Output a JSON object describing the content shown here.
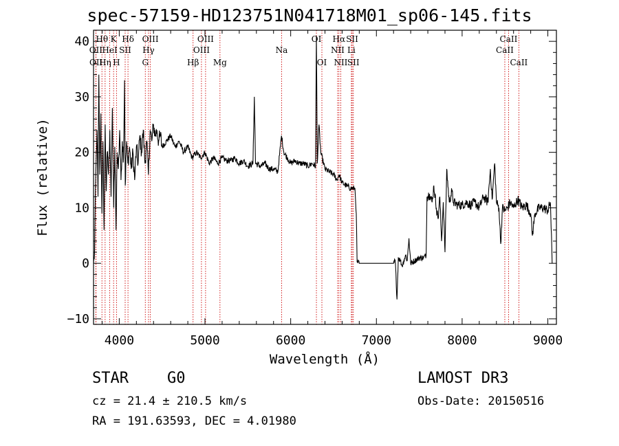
{
  "title": "spec-57159-HD123751N041718M01_sp06-145.fits",
  "info": {
    "object_class": "STAR",
    "subclass": "G0",
    "survey": "LAMOST DR3",
    "cz": "cz = 21.4 ± 210.5 km/s",
    "obs_date": "Obs-Date: 20150516",
    "radec": "RA = 191.63593, DEC =   4.01980"
  },
  "colors": {
    "spectrum": "#000000",
    "line_marker": "#cc0000",
    "axes": "#000000"
  },
  "chart_data": {
    "type": "line",
    "xlabel": "Wavelength (Å)",
    "ylabel": "Flux (relative)",
    "xlim": [
      3700,
      9100
    ],
    "ylim": [
      -11,
      42
    ],
    "xticks": [
      4000,
      5000,
      6000,
      7000,
      8000,
      9000
    ],
    "yticks": [
      -10,
      0,
      10,
      20,
      30,
      40
    ],
    "x_minor_step": 200,
    "y_minor_step": 2,
    "grid": false,
    "spectrum_anchors": [
      [
        3700,
        0
      ],
      [
        3712,
        2
      ],
      [
        3725,
        15
      ],
      [
        3740,
        24
      ],
      [
        3752,
        12
      ],
      [
        3762,
        34
      ],
      [
        3773,
        16
      ],
      [
        3786,
        27
      ],
      [
        3798,
        9
      ],
      [
        3810,
        22
      ],
      [
        3823,
        6
      ],
      [
        3836,
        25
      ],
      [
        3848,
        13
      ],
      [
        3860,
        20
      ],
      [
        3875,
        16
      ],
      [
        3890,
        24
      ],
      [
        3905,
        12
      ],
      [
        3920,
        28
      ],
      [
        3935,
        10
      ],
      [
        3948,
        21
      ],
      [
        3962,
        6
      ],
      [
        3975,
        20
      ],
      [
        3990,
        17
      ],
      [
        4005,
        24
      ],
      [
        4020,
        15
      ],
      [
        4035,
        22
      ],
      [
        4050,
        19
      ],
      [
        4062,
        33
      ],
      [
        4070,
        14
      ],
      [
        4085,
        22
      ],
      [
        4100,
        18
      ],
      [
        4120,
        21
      ],
      [
        4140,
        17
      ],
      [
        4160,
        20
      ],
      [
        4180,
        15
      ],
      [
        4200,
        21
      ],
      [
        4220,
        18
      ],
      [
        4240,
        23
      ],
      [
        4260,
        20
      ],
      [
        4280,
        24
      ],
      [
        4300,
        18
      ],
      [
        4320,
        22
      ],
      [
        4340,
        16
      ],
      [
        4360,
        24
      ],
      [
        4380,
        22
      ],
      [
        4400,
        25
      ],
      [
        4420,
        23
      ],
      [
        4440,
        24
      ],
      [
        4460,
        22
      ],
      [
        4480,
        23
      ],
      [
        4500,
        21
      ],
      [
        4550,
        22
      ],
      [
        4600,
        23
      ],
      [
        4650,
        21
      ],
      [
        4700,
        22
      ],
      [
        4750,
        20
      ],
      [
        4800,
        21
      ],
      [
        4850,
        19
      ],
      [
        4900,
        20
      ],
      [
        4950,
        19
      ],
      [
        5000,
        20
      ],
      [
        5050,
        18
      ],
      [
        5100,
        19
      ],
      [
        5150,
        18
      ],
      [
        5200,
        19
      ],
      [
        5250,
        18.5
      ],
      [
        5300,
        18.5
      ],
      [
        5350,
        19
      ],
      [
        5400,
        18
      ],
      [
        5450,
        18.5
      ],
      [
        5500,
        17.5
      ],
      [
        5560,
        18
      ],
      [
        5576,
        30
      ],
      [
        5590,
        18
      ],
      [
        5650,
        17.5
      ],
      [
        5700,
        18
      ],
      [
        5750,
        17
      ],
      [
        5800,
        17
      ],
      [
        5850,
        16.5
      ],
      [
        5893,
        23
      ],
      [
        5920,
        20
      ],
      [
        5960,
        19
      ],
      [
        6000,
        18
      ],
      [
        6050,
        18.5
      ],
      [
        6100,
        18
      ],
      [
        6150,
        18
      ],
      [
        6200,
        17.5
      ],
      [
        6250,
        18
      ],
      [
        6290,
        17.5
      ],
      [
        6300,
        41
      ],
      [
        6310,
        18
      ],
      [
        6330,
        25
      ],
      [
        6350,
        20
      ],
      [
        6400,
        17
      ],
      [
        6450,
        16.5
      ],
      [
        6500,
        16
      ],
      [
        6540,
        15
      ],
      [
        6563,
        16
      ],
      [
        6600,
        14.5
      ],
      [
        6650,
        14
      ],
      [
        6700,
        13.5
      ],
      [
        6750,
        13.5
      ],
      [
        6755,
        12
      ],
      [
        6765,
        9
      ],
      [
        6775,
        0.2
      ],
      [
        6800,
        0
      ],
      [
        7200,
        0
      ],
      [
        7220,
        0.5
      ],
      [
        7240,
        -6.5
      ],
      [
        7255,
        1
      ],
      [
        7280,
        0.5
      ],
      [
        7300,
        -0.5
      ],
      [
        7320,
        0.5
      ],
      [
        7340,
        1.5
      ],
      [
        7360,
        0.5
      ],
      [
        7380,
        4.5
      ],
      [
        7400,
        0
      ],
      [
        7450,
        0.5
      ],
      [
        7500,
        1
      ],
      [
        7550,
        1
      ],
      [
        7580,
        1.5
      ],
      [
        7590,
        12
      ],
      [
        7620,
        12.5
      ],
      [
        7650,
        11
      ],
      [
        7670,
        14
      ],
      [
        7700,
        10
      ],
      [
        7720,
        8
      ],
      [
        7740,
        12
      ],
      [
        7760,
        4
      ],
      [
        7780,
        11
      ],
      [
        7800,
        2
      ],
      [
        7820,
        17
      ],
      [
        7850,
        11
      ],
      [
        7880,
        13
      ],
      [
        7900,
        11
      ],
      [
        7950,
        10.5
      ],
      [
        8000,
        10.5
      ],
      [
        8050,
        11
      ],
      [
        8100,
        10.5
      ],
      [
        8150,
        11
      ],
      [
        8200,
        10
      ],
      [
        8250,
        12
      ],
      [
        8300,
        11
      ],
      [
        8330,
        17
      ],
      [
        8350,
        11.5
      ],
      [
        8380,
        18
      ],
      [
        8400,
        11
      ],
      [
        8430,
        10
      ],
      [
        8450,
        3.5
      ],
      [
        8470,
        10
      ],
      [
        8500,
        9.5
      ],
      [
        8530,
        10
      ],
      [
        8560,
        11
      ],
      [
        8600,
        10
      ],
      [
        8650,
        11.5
      ],
      [
        8700,
        10
      ],
      [
        8750,
        10.5
      ],
      [
        8800,
        9
      ],
      [
        8820,
        5
      ],
      [
        8850,
        9
      ],
      [
        8900,
        10
      ],
      [
        8950,
        10
      ],
      [
        9000,
        9.5
      ],
      [
        9030,
        11
      ],
      [
        9050,
        0
      ]
    ],
    "spectral_lines": [
      {
        "label": "Hθ",
        "wavelength": 3798,
        "row": 0
      },
      {
        "label": "OII",
        "wavelength": 3727,
        "row": 1
      },
      {
        "label": "OII",
        "wavelength": 3729,
        "row": 2
      },
      {
        "label": "Hη",
        "wavelength": 3835,
        "row": 2
      },
      {
        "label": "K",
        "wavelength": 3934,
        "row": 0
      },
      {
        "label": "HeI",
        "wavelength": 3889,
        "row": 1
      },
      {
        "label": "H",
        "wavelength": 3968,
        "row": 2
      },
      {
        "label": "SII",
        "wavelength": 4069,
        "row": 1
      },
      {
        "label": "Hδ",
        "wavelength": 4102,
        "row": 0
      },
      {
        "label": "OIII",
        "wavelength": 4363,
        "row": 0
      },
      {
        "label": "Hγ",
        "wavelength": 4341,
        "row": 1
      },
      {
        "label": "G",
        "wavelength": 4304,
        "row": 2
      },
      {
        "label": "Hβ",
        "wavelength": 4861,
        "row": 2
      },
      {
        "label": "OIII",
        "wavelength": 5007,
        "row": 0
      },
      {
        "label": "OIII",
        "wavelength": 4959,
        "row": 1
      },
      {
        "label": "Mg",
        "wavelength": 5175,
        "row": 2
      },
      {
        "label": "Na",
        "wavelength": 5894,
        "row": 1
      },
      {
        "label": "OI",
        "wavelength": 6300,
        "row": 0
      },
      {
        "label": "OI",
        "wavelength": 6364,
        "row": 2
      },
      {
        "label": "Hα",
        "wavelength": 6563,
        "row": 0
      },
      {
        "label": "NII",
        "wavelength": 6548,
        "row": 1
      },
      {
        "label": "NII",
        "wavelength": 6584,
        "row": 2
      },
      {
        "label": "SII",
        "wavelength": 6717,
        "row": 0
      },
      {
        "label": "Li",
        "wavelength": 6708,
        "row": 1
      },
      {
        "label": "SII",
        "wavelength": 6731,
        "row": 2
      },
      {
        "label": "CaII",
        "wavelength": 8542,
        "row": 0
      },
      {
        "label": "CaII",
        "wavelength": 8498,
        "row": 1
      },
      {
        "label": "CaII",
        "wavelength": 8662,
        "row": 2
      }
    ]
  }
}
